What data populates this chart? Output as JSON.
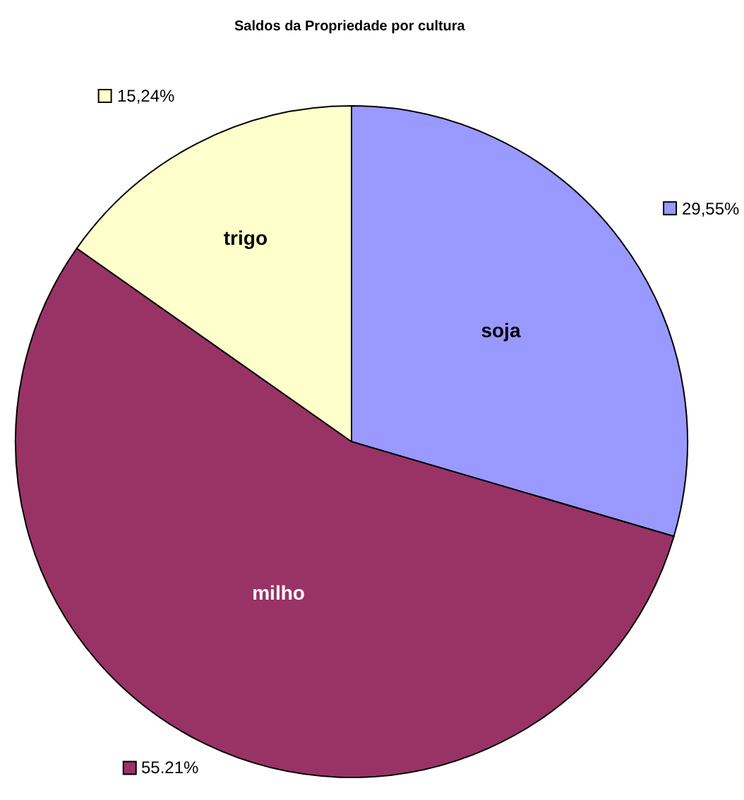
{
  "chart_data": {
    "type": "pie",
    "title": "Saldos da Propriedade por cultura",
    "categories": [
      "soja",
      "milho",
      "trigo"
    ],
    "values": [
      29.55,
      55.21,
      15.24
    ],
    "value_labels": [
      "29,55%",
      "55.21%",
      "15,24%"
    ],
    "colors": [
      "#9999ff",
      "#993366",
      "#ffffcc"
    ],
    "legend": false
  }
}
